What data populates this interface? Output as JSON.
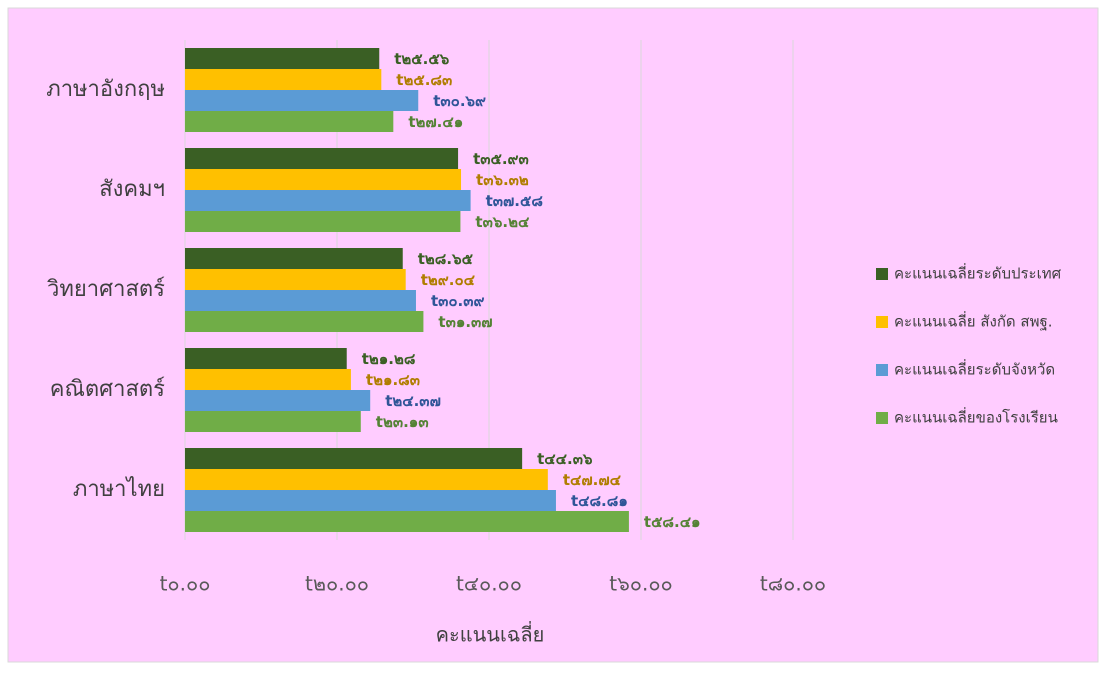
{
  "chart_data": {
    "type": "hbar",
    "x_label": "คะแนนเฉลี่ย",
    "categories": [
      "ภาษาอังกฤษ",
      "สังคมฯ",
      "วิทยาศาสตร์",
      "คณิตศาสตร์",
      "ภาษาไทย"
    ],
    "series": [
      {
        "name": "คะแนนเฉลี่ยระดับประเทศ",
        "color": "#3a5f24",
        "label_color": "#3a5f24",
        "values": [
          25.56,
          35.93,
          28.65,
          21.28,
          44.36
        ],
        "value_labels": [
          "t๒๕.๕๖",
          "t๓๕.๙๓",
          "t๒๘.๖๕",
          "t๒๑.๒๘",
          "t๔๔.๓๖"
        ]
      },
      {
        "name": "คะแนนเฉลี่ย สังกัด สพฐ.",
        "color": "#ffc000",
        "label_color": "#b07d00",
        "values": [
          25.83,
          36.32,
          29.04,
          21.83,
          47.74
        ],
        "value_labels": [
          "t๒๕.๘๓",
          "t๓๖.๓๒",
          "t๒๙.๐๔",
          "t๒๑.๘๓",
          "t๔๗.๗๔"
        ]
      },
      {
        "name": "คะแนนเฉลี่ยระดับจังหวัด",
        "color": "#5b9bd5",
        "label_color": "#2f5597",
        "values": [
          30.69,
          37.58,
          30.39,
          24.37,
          48.81
        ],
        "value_labels": [
          "t๓๐.๖๙",
          "t๓๗.๕๘",
          "t๓๐.๓๙",
          "t๒๔.๓๗",
          "t๔๘.๘๑"
        ]
      },
      {
        "name": "คะแนนเฉลี่ยของโรงเรียน",
        "color": "#70ad47",
        "label_color": "#548235",
        "values": [
          27.41,
          36.24,
          31.37,
          23.13,
          58.41
        ],
        "value_labels": [
          "t๒๗.๔๑",
          "t๓๖.๒๔",
          "t๓๑.๓๗",
          "t๒๓.๑๓",
          "t๕๘.๔๑"
        ]
      }
    ],
    "xlim": [
      0,
      80
    ],
    "xticks": [
      {
        "value": 0,
        "label": "t๐.๐๐"
      },
      {
        "value": 20,
        "label": "t๒๐.๐๐"
      },
      {
        "value": 40,
        "label": "t๔๐.๐๐"
      },
      {
        "value": 60,
        "label": "t๖๐.๐๐"
      },
      {
        "value": 80,
        "label": "t๘๐.๐๐"
      }
    ],
    "grid": true,
    "legend": "right"
  }
}
